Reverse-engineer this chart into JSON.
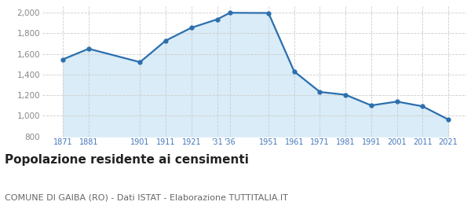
{
  "years": [
    1871,
    1881,
    1901,
    1911,
    1921,
    1931,
    1936,
    1951,
    1961,
    1971,
    1981,
    1991,
    2001,
    2011,
    2021
  ],
  "population": [
    1548,
    1651,
    1521,
    1730,
    1855,
    1936,
    2000,
    1998,
    1431,
    1232,
    1204,
    1101,
    1138,
    1092,
    964
  ],
  "line_color": "#2c6fad",
  "fill_color": "#d9ecf7",
  "marker": "o",
  "marker_size": 3.5,
  "line_width": 1.6,
  "ylim": [
    800,
    2060
  ],
  "xlim": [
    1863,
    2028
  ],
  "yticks": [
    800,
    1000,
    1200,
    1400,
    1600,
    1800,
    2000
  ],
  "x_tick_positions": [
    1871,
    1881,
    1901,
    1911,
    1921,
    1931,
    1936,
    1951,
    1961,
    1971,
    1981,
    1991,
    2001,
    2011,
    2021
  ],
  "x_tick_labels": [
    "1871",
    "1881",
    "1901",
    "1911",
    "1921",
    "'31",
    "'36",
    "1951",
    "1961",
    "1971",
    "1981",
    "1991",
    "2001",
    "2011",
    "2021"
  ],
  "title": "Popolazione residente ai censimenti",
  "subtitle": "COMUNE DI GAIBA (RO) - Dati ISTAT - Elaborazione TUTTITALIA.IT",
  "title_fontsize": 11,
  "subtitle_fontsize": 8,
  "title_color": "#222222",
  "subtitle_color": "#666666",
  "tick_color_x": "#4477bb",
  "tick_color_y": "#888888",
  "grid_color": "#cccccc",
  "background_color": "#ffffff"
}
